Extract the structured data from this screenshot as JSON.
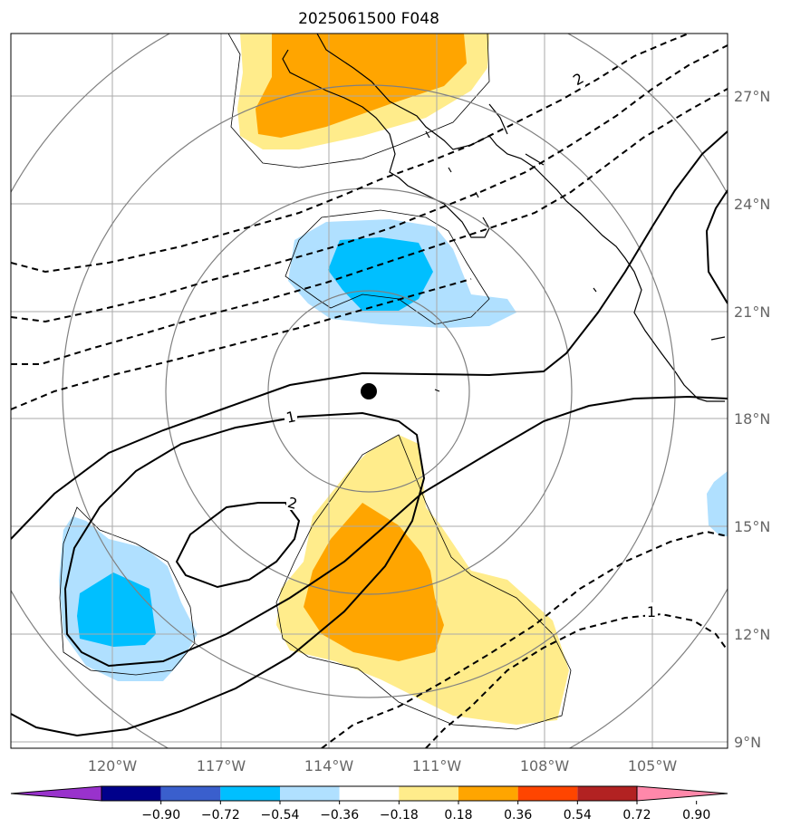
{
  "title": "2025061500 F048",
  "lon_labels": [
    "120°W",
    "117°W",
    "114°W",
    "111°W",
    "108°W",
    "105°W"
  ],
  "lat_labels": [
    "27°N",
    "24°N",
    "21°N",
    "18°N",
    "15°N",
    "12°N",
    "9°N"
  ],
  "contour_labels": [
    "2",
    "1",
    "2",
    "1"
  ],
  "colorbar": {
    "ticks": [
      "−0.90",
      "−0.72",
      "−0.54",
      "−0.36",
      "−0.18",
      "0.18",
      "0.36",
      "0.54",
      "0.72",
      "0.90"
    ],
    "colors": [
      "#9932cc",
      "#00008b",
      "#3a5fcd",
      "#00bfff",
      "#b0e0ff",
      "#ffffff",
      "#ffec8b",
      "#ffa500",
      "#ff4500",
      "#b22222",
      "#ff88aa"
    ]
  },
  "colors": {
    "light_blue": "#b0e0ff",
    "blue": "#00bfff",
    "light_yellow": "#ffec8b",
    "orange": "#ffa500",
    "grid": "#aaaaaa",
    "range_ring": "#808080"
  },
  "storm_center": {
    "lon": -112.6,
    "lat": 18.7
  }
}
